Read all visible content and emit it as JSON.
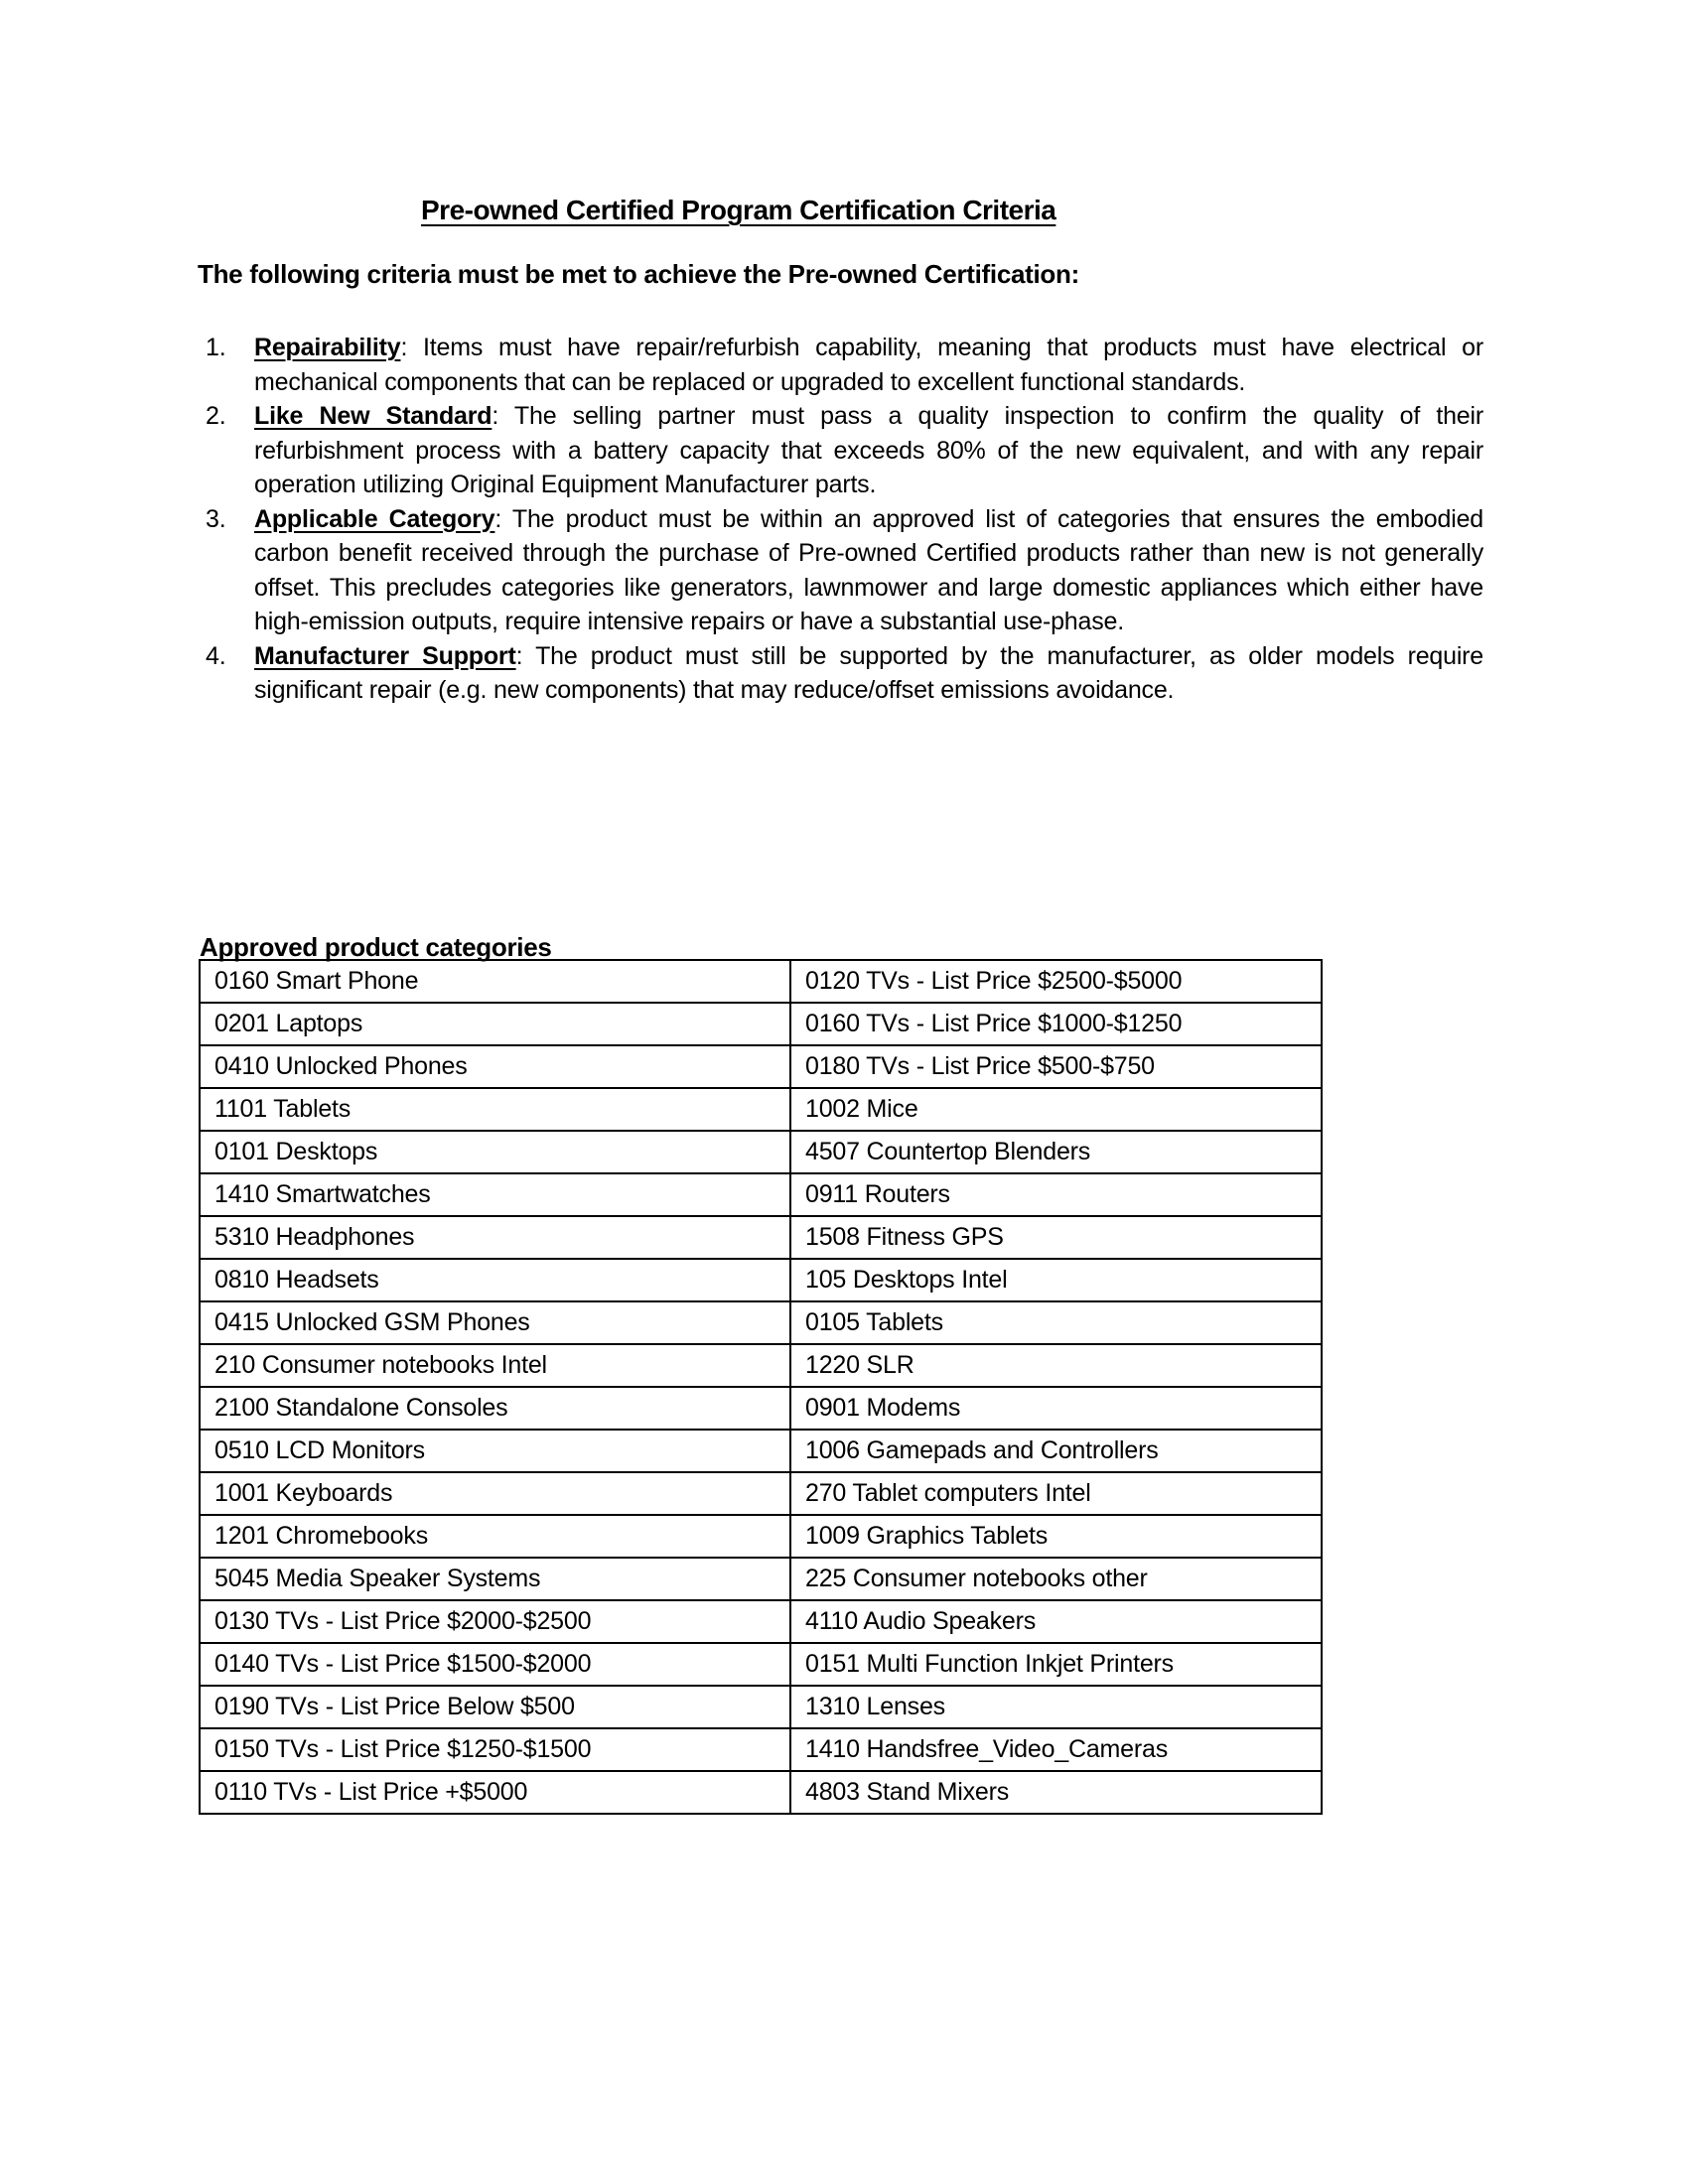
{
  "page": {
    "title": "Pre-owned Certified Program Certification Criteria",
    "intro": "The following criteria must be met to achieve the Pre-owned Certification:"
  },
  "criteria": {
    "items": [
      {
        "number": "1.",
        "term": "Repairability",
        "text": ": Items must have repair/refurbish capability, meaning that products must have electrical or mechanical components that can be replaced or upgraded to excellent functional standards."
      },
      {
        "number": "2.",
        "term": "Like New Standard",
        "text": ": The selling partner must pass a quality inspection to confirm the quality of their refurbishment process with a battery capacity that exceeds 80% of the new equivalent, and with any repair operation utilizing Original Equipment Manufacturer parts."
      },
      {
        "number": "3.",
        "term": "Applicable Category",
        "text": ": The product must be within an approved list of categories that ensures the embodied carbon benefit received through the purchase of Pre-owned Certified products rather than new is not generally offset. This precludes categories like generators, lawnmower and large domestic appliances which either have high-emission outputs, require intensive repairs or have a substantial use-phase."
      },
      {
        "number": "4.",
        "term": "Manufacturer Support",
        "text": ": The product must still be supported by the manufacturer, as older models require significant repair (e.g. new components) that may reduce/offset emissions avoidance."
      }
    ]
  },
  "categories": {
    "heading": "Approved product categories",
    "rows": [
      [
        "0160 Smart Phone",
        "0120 TVs - List Price $2500-$5000"
      ],
      [
        "0201 Laptops",
        "0160 TVs - List Price $1000-$1250"
      ],
      [
        "0410 Unlocked Phones",
        "0180 TVs - List Price $500-$750"
      ],
      [
        "1101 Tablets",
        "1002 Mice"
      ],
      [
        "0101 Desktops",
        "4507 Countertop Blenders"
      ],
      [
        "1410 Smartwatches",
        "0911 Routers"
      ],
      [
        "5310 Headphones",
        "1508 Fitness GPS"
      ],
      [
        "0810 Headsets",
        "105 Desktops Intel"
      ],
      [
        "0415 Unlocked GSM Phones",
        "0105 Tablets"
      ],
      [
        "210 Consumer notebooks Intel",
        "1220 SLR"
      ],
      [
        "2100 Standalone Consoles",
        "0901 Modems"
      ],
      [
        "0510 LCD Monitors",
        "1006 Gamepads and Controllers"
      ],
      [
        "1001 Keyboards",
        "270 Tablet computers Intel"
      ],
      [
        "1201 Chromebooks",
        "1009 Graphics Tablets"
      ],
      [
        "5045 Media Speaker Systems",
        "225 Consumer notebooks other"
      ],
      [
        "0130 TVs - List Price $2000-$2500",
        "4110 Audio Speakers"
      ],
      [
        "0140 TVs - List Price $1500-$2000",
        "0151 Multi Function Inkjet Printers"
      ],
      [
        "0190 TVs - List Price Below $500",
        "1310 Lenses"
      ],
      [
        "0150 TVs - List Price $1250-$1500",
        "1410 Handsfree_Video_Cameras"
      ],
      [
        "0110 TVs - List Price +$5000",
        "4803 Stand Mixers"
      ]
    ]
  },
  "colors": {
    "text": "#000000",
    "background": "#ffffff",
    "table_border": "#000000"
  }
}
